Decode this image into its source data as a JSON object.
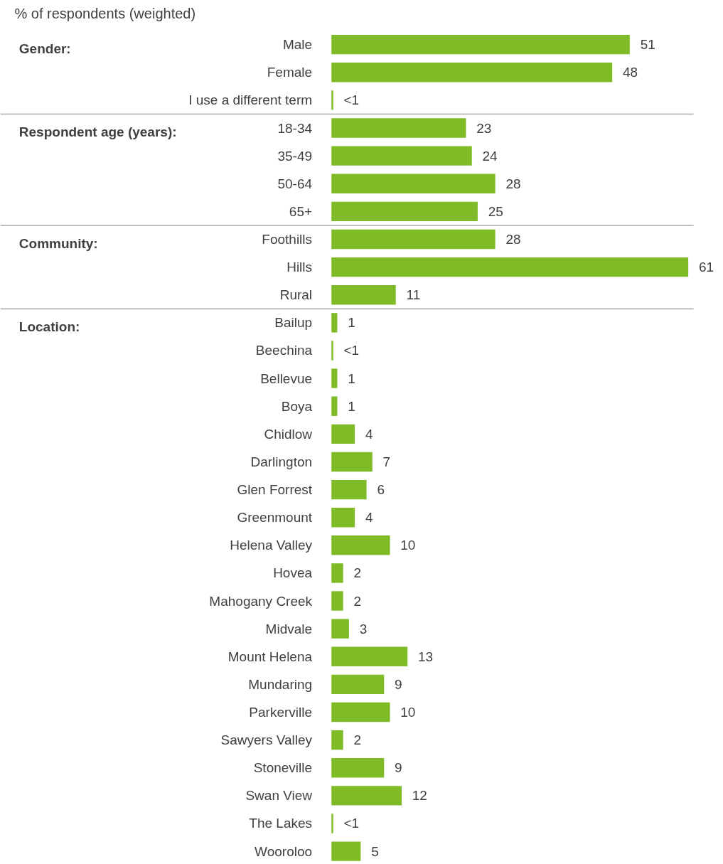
{
  "chart_data": {
    "type": "bar",
    "orientation": "horizontal",
    "title": "% of respondents (weighted)",
    "categories": [
      "Male",
      "Female",
      "I use a different term",
      "18-34",
      "35-49",
      "50-64",
      "65+",
      "Foothills",
      "Hills",
      "Rural",
      "Bailup",
      "Beechina",
      "Bellevue",
      "Boya",
      "Chidlow",
      "Darlington",
      "Glen Forrest",
      "Greenmount",
      "Helena Valley",
      "Hovea",
      "Mahogany Creek",
      "Midvale",
      "Mount Helena",
      "Mundaring",
      "Parkerville",
      "Sawyers Valley",
      "Stoneville",
      "Swan View",
      "The Lakes",
      "Wooroloo"
    ],
    "values": [
      51,
      48,
      0.3,
      23,
      24,
      28,
      25,
      28,
      61,
      11,
      1,
      0.3,
      1,
      1,
      4,
      7,
      6,
      4,
      10,
      2,
      2,
      3,
      13,
      9,
      10,
      2,
      9,
      12,
      0.3,
      5
    ],
    "value_labels": [
      "51",
      "48",
      "<1",
      "23",
      "24",
      "28",
      "25",
      "28",
      "61",
      "11",
      "1",
      "<1",
      "1",
      "1",
      "4",
      "7",
      "6",
      "4",
      "10",
      "2",
      "2",
      "3",
      "13",
      "9",
      "10",
      "2",
      "9",
      "12",
      "<1",
      "5"
    ],
    "color": "#7fba27",
    "annotations": [
      "Gender:",
      "Respondent age (years):",
      "Community:",
      "Location:"
    ]
  }
}
